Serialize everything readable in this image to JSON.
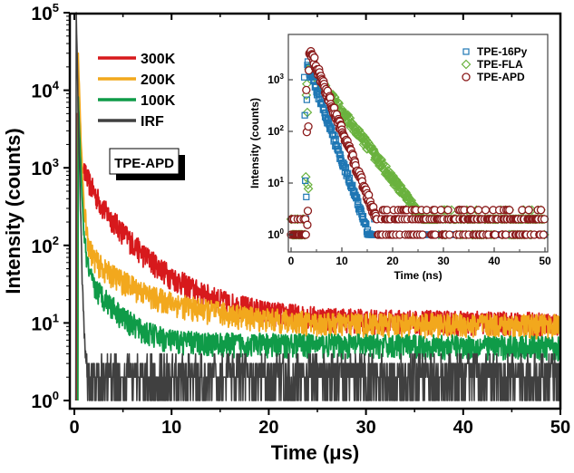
{
  "chart_data": [
    {
      "id": "main",
      "type": "line",
      "title": "",
      "xlabel": "Time (μs)",
      "ylabel": "Intensity (counts)",
      "xlim": [
        0,
        50
      ],
      "ylim": [
        1,
        100000
      ],
      "yscale": "log",
      "x_ticks": [
        "0",
        "10",
        "20",
        "30",
        "40",
        "50"
      ],
      "x_tick_values": [
        0,
        10,
        20,
        30,
        40,
        50
      ],
      "y_ticks": [
        {
          "base": "10",
          "exp": "0",
          "value": 1
        },
        {
          "base": "10",
          "exp": "1",
          "value": 10
        },
        {
          "base": "10",
          "exp": "2",
          "value": 100
        },
        {
          "base": "10",
          "exp": "3",
          "value": 1000
        },
        {
          "base": "10",
          "exp": "4",
          "value": 10000
        },
        {
          "base": "10",
          "exp": "5",
          "value": 100000
        }
      ],
      "legend_position": "top-left",
      "annotation": "TPE-APD",
      "series": [
        {
          "name": "300K",
          "color": "#d7191c",
          "peak": 5000,
          "peak_x": 0.3,
          "decay": [
            [
              0.3,
              5000
            ],
            [
              0.5,
              1300
            ],
            [
              1,
              900
            ],
            [
              2,
              500
            ],
            [
              3,
              300
            ],
            [
              5,
              150
            ],
            [
              7,
              80
            ],
            [
              10,
              40
            ],
            [
              13,
              25
            ],
            [
              16,
              18
            ],
            [
              20,
              14
            ],
            [
              25,
              12
            ],
            [
              30,
              11
            ],
            [
              40,
              10.5
            ],
            [
              50,
              10
            ]
          ],
          "noise_floor": 10
        },
        {
          "name": "200K",
          "color": "#f2a81d",
          "peak": 30000,
          "peak_x": 0.4,
          "decay": [
            [
              0.4,
              30000
            ],
            [
              0.7,
              2000
            ],
            [
              1,
              300
            ],
            [
              1.5,
              100
            ],
            [
              2,
              70
            ],
            [
              3,
              50
            ],
            [
              5,
              35
            ],
            [
              8,
              22
            ],
            [
              12,
              16
            ],
            [
              18,
              12
            ],
            [
              25,
              10
            ],
            [
              50,
              9.5
            ]
          ],
          "noise_floor": 9.5
        },
        {
          "name": "100K",
          "color": "#0f9b48",
          "peak": 8000,
          "peak_x": 0.4,
          "decay": [
            [
              0.4,
              8000
            ],
            [
              0.7,
              800
            ],
            [
              1,
              120
            ],
            [
              1.5,
              45
            ],
            [
              2,
              30
            ],
            [
              3,
              22
            ],
            [
              5,
              12
            ],
            [
              7,
              8
            ],
            [
              10,
              6
            ],
            [
              15,
              5.5
            ],
            [
              50,
              5
            ]
          ],
          "noise_floor": 5
        },
        {
          "name": "IRF",
          "color": "#404040",
          "peak": 100000,
          "peak_x": 0.2,
          "decay": [
            [
              0.2,
              100000
            ],
            [
              0.4,
              5000
            ],
            [
              0.6,
              400
            ],
            [
              0.8,
              40
            ],
            [
              1,
              8
            ],
            [
              1.2,
              3
            ],
            [
              50,
              2
            ]
          ],
          "noise_floor": 2
        }
      ]
    },
    {
      "id": "inset",
      "type": "scatter",
      "xlabel": "Time (ns)",
      "ylabel": "Intensity (counts)",
      "xlim": [
        0,
        50
      ],
      "ylim": [
        1,
        5000
      ],
      "yscale": "log",
      "x_ticks": [
        "0",
        "10",
        "20",
        "30",
        "40",
        "50"
      ],
      "x_tick_values": [
        0,
        10,
        20,
        30,
        40,
        50
      ],
      "y_ticks": [
        {
          "base": "10",
          "exp": "0",
          "value": 1
        },
        {
          "base": "10",
          "exp": "1",
          "value": 10
        },
        {
          "base": "10",
          "exp": "2",
          "value": 100
        },
        {
          "base": "10",
          "exp": "3",
          "value": 1000
        }
      ],
      "legend_position": "top-right",
      "series": [
        {
          "name": "TPE-16Py",
          "marker": "square",
          "color": "#1f77b4",
          "peak": 2000,
          "peak_x": 3.2,
          "decay_tau_ns": 1.6,
          "baseline": 1,
          "end_decay_x": 16
        },
        {
          "name": "TPE-FLA",
          "marker": "diamond",
          "color": "#6ab23e",
          "peak": 1800,
          "peak_x": 3.5,
          "decay_tau_ns": 3.3,
          "baseline": 2,
          "end_decay_x": 29
        },
        {
          "name": "TPE-APD",
          "marker": "circle",
          "color": "#8b1a1a",
          "peak": 4000,
          "peak_x": 3.6,
          "decay_tau_ns": 1.75,
          "baseline": 2,
          "end_decay_x": 17
        }
      ]
    }
  ]
}
